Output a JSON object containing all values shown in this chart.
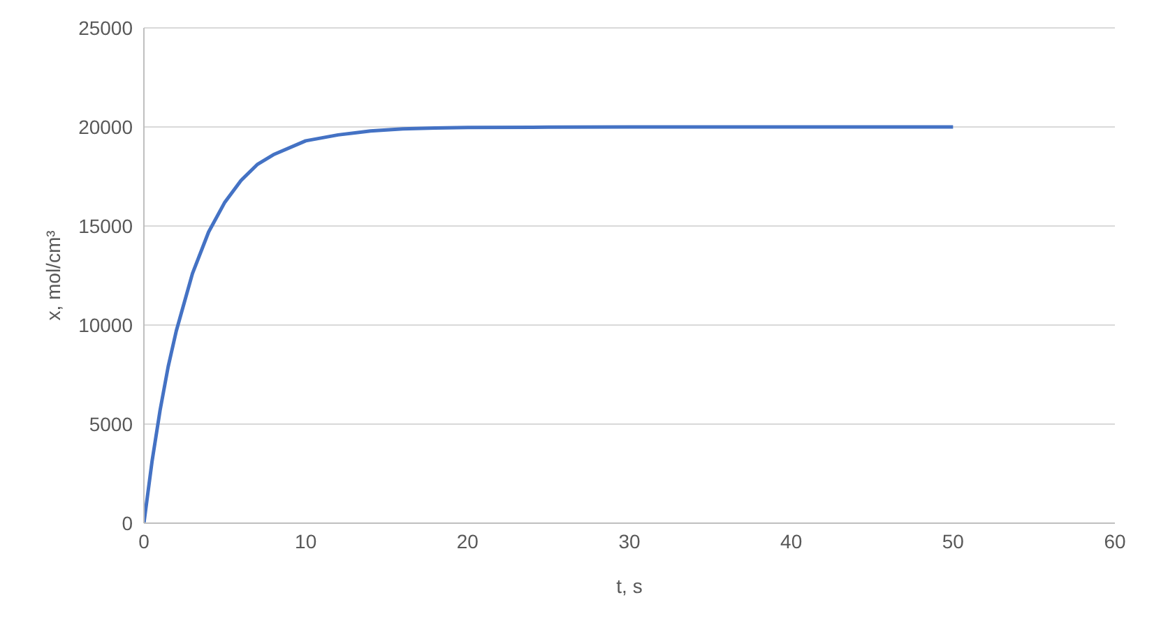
{
  "chart_data": {
    "type": "line",
    "xlabel": "t, s",
    "ylabel": "x, mol/cm³",
    "x": [
      0,
      0.5,
      1,
      1.5,
      2,
      3,
      4,
      5,
      6,
      7,
      8,
      10,
      12,
      14,
      16,
      18,
      20,
      25,
      30,
      40,
      50
    ],
    "series": [
      {
        "color": "#4472c4",
        "values": [
          0,
          3100,
          5700,
          7900,
          9700,
          12600,
          14700,
          16200,
          17300,
          18100,
          18600,
          19300,
          19600,
          19800,
          19900,
          19950,
          19970,
          19990,
          20000,
          20000,
          20000
        ]
      }
    ],
    "xlim": [
      0,
      60
    ],
    "xticks": [
      0,
      10,
      20,
      30,
      40,
      50,
      60
    ],
    "ylim": [
      0,
      25000
    ],
    "yticks": [
      0,
      5000,
      10000,
      15000,
      20000,
      25000
    ],
    "grid": "y",
    "legend": false,
    "marker": "none",
    "line_style": "solid"
  }
}
